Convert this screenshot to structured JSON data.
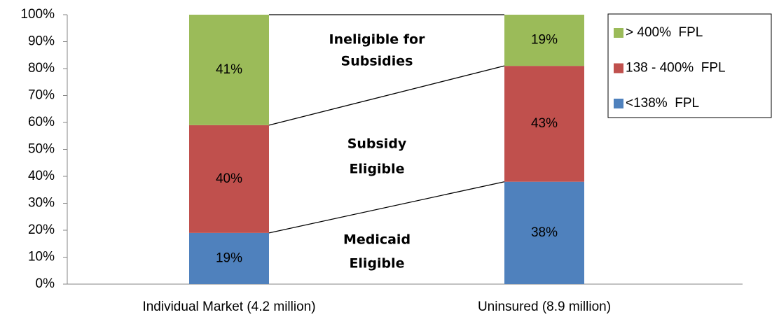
{
  "chart_data": {
    "type": "stacked-bar",
    "categories": [
      "Individual Market (4.2 million)",
      "Uninsured (8.9 million)"
    ],
    "series": [
      {
        "name": "<138%  FPL",
        "color": "#4f81bd",
        "values": [
          19,
          38
        ],
        "value_labels": [
          "19%",
          "38%"
        ]
      },
      {
        "name": "138 - 400%  FPL",
        "color": "#c0504d",
        "values": [
          40,
          43
        ],
        "value_labels": [
          "40%",
          "43%"
        ]
      },
      {
        "name": "> 400%  FPL",
        "color": "#9bbb59",
        "values": [
          41,
          19
        ],
        "value_labels": [
          "41%",
          "19%"
        ]
      }
    ],
    "ylim": [
      0,
      100
    ],
    "yticks": [
      {
        "value": 0,
        "label": "0%"
      },
      {
        "value": 10,
        "label": "10%"
      },
      {
        "value": 20,
        "label": "20%"
      },
      {
        "value": 30,
        "label": "30%"
      },
      {
        "value": 40,
        "label": "40%"
      },
      {
        "value": 50,
        "label": "50%"
      },
      {
        "value": 60,
        "label": "60%"
      },
      {
        "value": 70,
        "label": "70%"
      },
      {
        "value": 80,
        "label": "80%"
      },
      {
        "value": 90,
        "label": "90%"
      },
      {
        "value": 100,
        "label": "100%"
      }
    ],
    "annotations": [
      {
        "lines": [
          "Ineligible for",
          "Subsidies"
        ]
      },
      {
        "lines": [
          "Subsidy",
          "Eligible"
        ]
      },
      {
        "lines": [
          "Medicaid",
          "Eligible"
        ]
      }
    ],
    "legend": "upper right",
    "grid": false
  }
}
